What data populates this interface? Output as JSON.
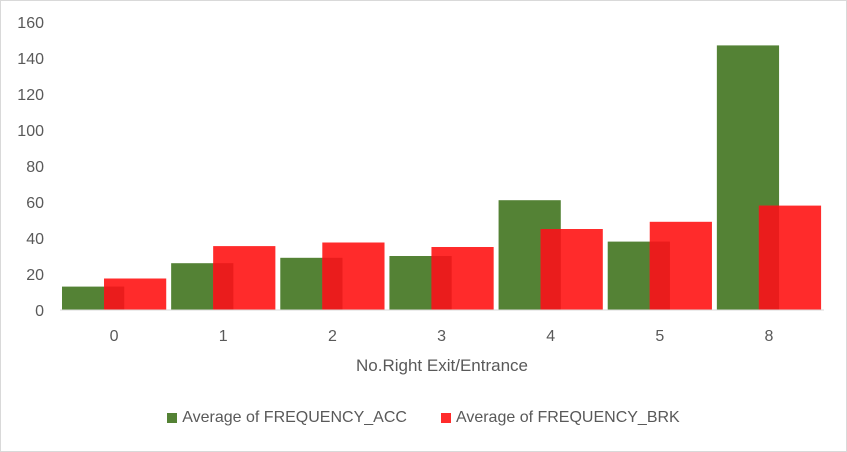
{
  "chart_data": {
    "type": "bar",
    "title": "",
    "xlabel": "No.Right Exit/Entrance",
    "ylabel": "",
    "ylim": [
      0,
      160
    ],
    "yticks": [
      0,
      20,
      40,
      60,
      80,
      100,
      120,
      140,
      160
    ],
    "categories": [
      "0",
      "1",
      "2",
      "3",
      "4",
      "5",
      "8"
    ],
    "series": [
      {
        "name": "Average of FREQUENCY_ACC",
        "color": "#548235",
        "values": [
          13,
          26,
          29,
          30,
          61,
          38,
          147
        ]
      },
      {
        "name": "Average of FREQUENCY_BRK",
        "color": "#ff2b2b",
        "values": [
          17.5,
          35.5,
          37.5,
          35,
          45,
          49,
          58
        ]
      }
    ],
    "overlap_color": "#ea1c1c",
    "grid": false,
    "legend_position": "bottom"
  }
}
